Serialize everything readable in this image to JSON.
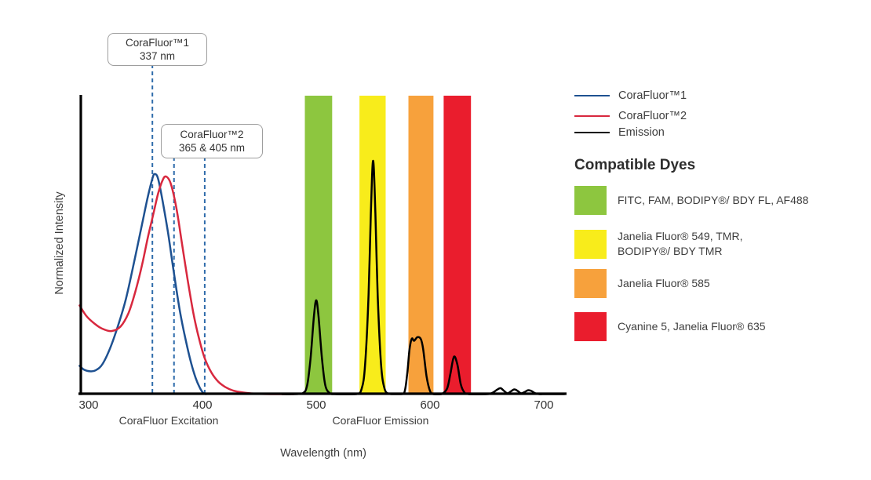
{
  "chart_data": {
    "type": "line",
    "title": "",
    "xlabel": "Wavelength (nm)",
    "ylabel": "Normalized Intensity",
    "x_ticks": [
      300,
      400,
      500,
      600,
      700
    ],
    "xlim": [
      291,
      720
    ],
    "ylim": [
      0,
      1
    ],
    "grid": false,
    "x_section_labels": [
      {
        "text": "CoraFluor Excitation"
      },
      {
        "text": "CoraFluor Emission"
      }
    ],
    "annotations": [
      {
        "label": "CoraFluor™1",
        "sublabel": "337 nm",
        "drawn_lines_x_nm": [
          356
        ]
      },
      {
        "label": "CoraFluor™2",
        "sublabel": "365 & 405 nm",
        "drawn_lines_x_nm": [
          375,
          402
        ]
      }
    ],
    "dashed_line_color": "#2f6cab",
    "series": [
      {
        "name": "CoraFluor™1",
        "color": "#1e5191",
        "kind": "excitation",
        "x": [
          292,
          296,
          301,
          306,
          312,
          319,
          326,
          333,
          340,
          347,
          352,
          356,
          358,
          361,
          365,
          370,
          375,
          380,
          385,
          390,
          394,
          398,
          401,
          403
        ],
        "y": [
          0.095,
          0.082,
          0.077,
          0.08,
          0.1,
          0.155,
          0.23,
          0.32,
          0.44,
          0.565,
          0.655,
          0.715,
          0.73,
          0.715,
          0.64,
          0.53,
          0.4,
          0.28,
          0.185,
          0.105,
          0.055,
          0.02,
          0.004,
          0.0
        ]
      },
      {
        "name": "CoraFluor™2",
        "color": "#d8283e",
        "kind": "excitation",
        "x": [
          292,
          298,
          305,
          312,
          320,
          328,
          335,
          341,
          347,
          352,
          357,
          361,
          365,
          368,
          372,
          377,
          382,
          387,
          392,
          397,
          402,
          408,
          414,
          420,
          427,
          435,
          445,
          460,
          480
        ],
        "y": [
          0.295,
          0.26,
          0.235,
          0.218,
          0.21,
          0.225,
          0.27,
          0.34,
          0.43,
          0.52,
          0.6,
          0.665,
          0.71,
          0.722,
          0.7,
          0.62,
          0.5,
          0.38,
          0.27,
          0.185,
          0.12,
          0.072,
          0.042,
          0.025,
          0.013,
          0.007,
          0.003,
          0.001,
          0.0
        ]
      },
      {
        "name": "Emission",
        "color": "#000000",
        "kind": "emission",
        "x": [
          470,
          478,
          488,
          492,
          495,
          498,
          500,
          502,
          505,
          508,
          512,
          516,
          535,
          540,
          543,
          546,
          548,
          550,
          552,
          554,
          557,
          560,
          564,
          570,
          577,
          580,
          582,
          584,
          586,
          589,
          592,
          594,
          597,
          600,
          603,
          610,
          615,
          618,
          621,
          624,
          627,
          630,
          634,
          650,
          655,
          659,
          662,
          665,
          668,
          671,
          674,
          677,
          680,
          683,
          686,
          689,
          692,
          696,
          702,
          718
        ],
        "y": [
          0.001,
          0.0,
          0.004,
          0.03,
          0.12,
          0.26,
          0.312,
          0.26,
          0.12,
          0.03,
          0.004,
          0.0,
          0.0,
          0.02,
          0.1,
          0.33,
          0.6,
          0.774,
          0.6,
          0.33,
          0.1,
          0.02,
          0.002,
          0.0,
          0.002,
          0.07,
          0.15,
          0.185,
          0.178,
          0.19,
          0.183,
          0.15,
          0.06,
          0.012,
          0.0,
          0.0,
          0.02,
          0.07,
          0.125,
          0.1,
          0.035,
          0.008,
          0.0,
          0.0,
          0.006,
          0.016,
          0.021,
          0.012,
          0.004,
          0.01,
          0.017,
          0.012,
          0.004,
          0.008,
          0.014,
          0.012,
          0.005,
          0.001,
          0.0,
          0.0
        ]
      }
    ],
    "bands": [
      {
        "name": "FITC filter band",
        "color": "#8dc63f",
        "from_nm": 490,
        "to_nm": 514
      },
      {
        "name": "TMR filter band",
        "color": "#f8ec1b",
        "from_nm": 538,
        "to_nm": 561
      },
      {
        "name": "JF585 filter band",
        "color": "#f7a13c",
        "from_nm": 581,
        "to_nm": 603
      },
      {
        "name": "Cy5 filter band",
        "color": "#ea1d2d",
        "from_nm": 612,
        "to_nm": 636
      }
    ]
  },
  "legend": {
    "items": [
      {
        "label": "CoraFluor™1",
        "color": "#1e5191"
      },
      {
        "label": "CoraFluor™2",
        "color": "#d8283e"
      },
      {
        "label": "Emission",
        "color": "#000000"
      }
    ]
  },
  "compatible_dyes": {
    "heading": "Compatible Dyes",
    "items": [
      {
        "color": "#8dc63f",
        "label": "FITC, FAM, BODIPY®/ BDY FL, AF488"
      },
      {
        "color": "#f8ec1b",
        "label": "Janelia Fluor® 549, TMR,\nBODIPY®/ BDY TMR"
      },
      {
        "color": "#f7a13c",
        "label": "Janelia Fluor® 585"
      },
      {
        "color": "#ea1d2d",
        "label": "Cyanine 5, Janelia Fluor® 635"
      }
    ]
  }
}
